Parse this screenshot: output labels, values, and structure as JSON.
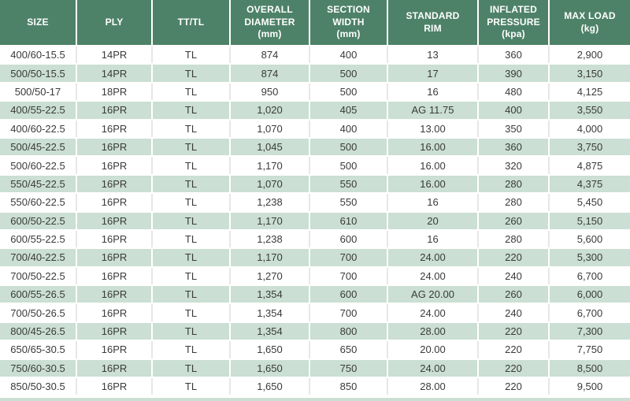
{
  "colors": {
    "header_bg": "#4e8268",
    "header_text": "#ffffff",
    "row_bg": "#ffffff",
    "row_alt_bg": "#cbdfd4",
    "body_text": "#3a3a3a"
  },
  "table": {
    "columns": [
      {
        "label": "SIZE"
      },
      {
        "label": "PLY"
      },
      {
        "label": "TT/TL"
      },
      {
        "label": "OVERALL\nDIAMETER\n(mm)"
      },
      {
        "label": "SECTION\nWIDTH\n(mm)"
      },
      {
        "label": "STANDARD\nRIM"
      },
      {
        "label": "INFLATED\nPRESSURE\n(kpa)"
      },
      {
        "label": "MAX LOAD\n(kg)"
      }
    ],
    "rows": [
      [
        "400/60-15.5",
        "14PR",
        "TL",
        "874",
        "400",
        "13",
        "360",
        "2,900"
      ],
      [
        "500/50-15.5",
        "14PR",
        "TL",
        "874",
        "500",
        "17",
        "390",
        "3,150"
      ],
      [
        "500/50-17",
        "18PR",
        "TL",
        "950",
        "500",
        "16",
        "480",
        "4,125"
      ],
      [
        "400/55-22.5",
        "16PR",
        "TL",
        "1,020",
        "405",
        "AG 11.75",
        "400",
        "3,550"
      ],
      [
        "400/60-22.5",
        "16PR",
        "TL",
        "1,070",
        "400",
        "13.00",
        "350",
        "4,000"
      ],
      [
        "500/45-22.5",
        "16PR",
        "TL",
        "1,045",
        "500",
        "16.00",
        "360",
        "3,750"
      ],
      [
        "500/60-22.5",
        "16PR",
        "TL",
        "1,170",
        "500",
        "16.00",
        "320",
        "4,875"
      ],
      [
        "550/45-22.5",
        "16PR",
        "TL",
        "1,070",
        "550",
        "16.00",
        "280",
        "4,375"
      ],
      [
        "550/60-22.5",
        "16PR",
        "TL",
        "1,238",
        "550",
        "16",
        "280",
        "5,450"
      ],
      [
        "600/50-22.5",
        "16PR",
        "TL",
        "1,170",
        "610",
        "20",
        "260",
        "5,150"
      ],
      [
        "600/55-22.5",
        "16PR",
        "TL",
        "1,238",
        "600",
        "16",
        "280",
        "5,600"
      ],
      [
        "700/40-22.5",
        "16PR",
        "TL",
        "1,170",
        "700",
        "24.00",
        "220",
        "5,300"
      ],
      [
        "700/50-22.5",
        "16PR",
        "TL",
        "1,270",
        "700",
        "24.00",
        "240",
        "6,700"
      ],
      [
        "600/55-26.5",
        "16PR",
        "TL",
        "1,354",
        "600",
        "AG 20.00",
        "260",
        "6,000"
      ],
      [
        "700/50-26.5",
        "16PR",
        "TL",
        "1,354",
        "700",
        "24.00",
        "240",
        "6,700"
      ],
      [
        "800/45-26.5",
        "16PR",
        "TL",
        "1,354",
        "800",
        "28.00",
        "220",
        "7,300"
      ],
      [
        "650/65-30.5",
        "16PR",
        "TL",
        "1,650",
        "650",
        "20.00",
        "220",
        "7,750"
      ],
      [
        "750/60-30.5",
        "16PR",
        "TL",
        "1,650",
        "750",
        "24.00",
        "220",
        "8,500"
      ],
      [
        "850/50-30.5",
        "16PR",
        "TL",
        "1,650",
        "850",
        "28.00",
        "220",
        "9,500"
      ]
    ]
  }
}
